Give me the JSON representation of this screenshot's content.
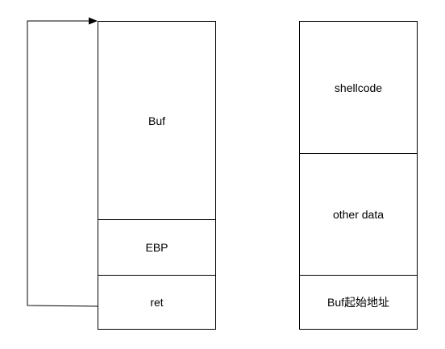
{
  "left_stack": {
    "buf_label": "Buf",
    "ebp_label": "EBP",
    "ret_label": "ret"
  },
  "right_stack": {
    "shellcode_label": "shellcode",
    "other_data_label": "other data",
    "buf_start_label": "Buf起始地址"
  },
  "colors": {
    "stroke": "#000000",
    "fill": "#ffffff"
  }
}
